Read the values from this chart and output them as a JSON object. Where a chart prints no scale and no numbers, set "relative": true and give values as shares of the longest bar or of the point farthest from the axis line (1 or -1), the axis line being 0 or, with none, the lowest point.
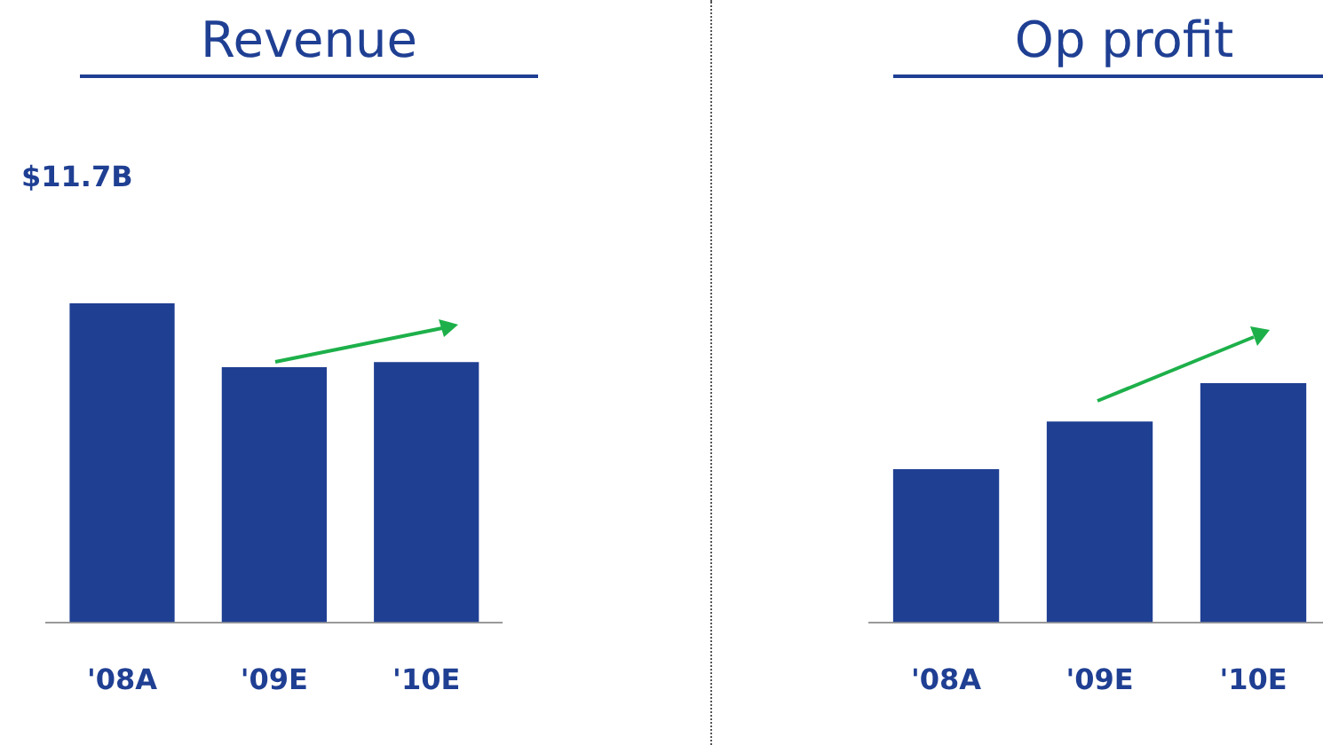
{
  "chart_data": [
    {
      "type": "bar",
      "title": "Revenue",
      "categories": [
        "'08A",
        "'09E",
        "'10E"
      ],
      "values": [
        1,
        0.8,
        0.816
      ],
      "color": "#1f3f93",
      "relative": true,
      "annotations": [
        "$11.7B"
      ]
    },
    {
      "type": "bar",
      "title": "Op profit",
      "categories": [
        "'08A",
        "'09E",
        "'10E"
      ],
      "values": [
        0.64,
        0.84,
        1
      ],
      "color": "#1f3f93",
      "relative": true
    }
  ]
}
